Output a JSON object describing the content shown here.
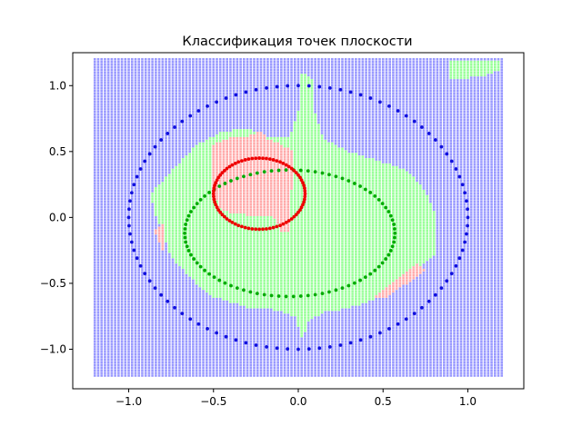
{
  "chart_data": {
    "type": "scatter",
    "title": "Классификация точек плоскости",
    "xlabel": "",
    "ylabel": "",
    "xlim": [
      -1.33,
      1.33
    ],
    "ylim": [
      -1.3,
      1.25
    ],
    "x_ticks": [
      -1.0,
      -0.5,
      0.0,
      0.5,
      1.0
    ],
    "x_tick_labels": [
      "−1.0",
      "−0.5",
      "0.0",
      "0.5",
      "1.0"
    ],
    "y_ticks": [
      -1.0,
      -0.5,
      0.0,
      0.5,
      1.0
    ],
    "y_tick_labels": [
      "−1.0",
      "−0.5",
      "0.0",
      "0.5",
      "1.0"
    ],
    "grid": false,
    "colors": {
      "class_outer": "#1010dd",
      "class_middle": "#00aa00",
      "class_inner": "#ee0000",
      "region_outer": "#9999ff",
      "region_middle": "#99ff99",
      "region_inner": "#ffaaaa"
    },
    "background_grid": {
      "x_range": [
        -1.2,
        1.2
      ],
      "y_range": [
        -1.2,
        1.2
      ],
      "step": 0.02
    },
    "regions": [
      {
        "name": "region-outer",
        "class": "outer",
        "polygon": [
          [
            -1.2,
            -1.2
          ],
          [
            1.2,
            -1.2
          ],
          [
            1.2,
            1.2
          ],
          [
            -1.2,
            1.2
          ]
        ]
      },
      {
        "name": "region-middle-blob",
        "class": "middle",
        "polygon": [
          [
            -0.87,
            0.18
          ],
          [
            -0.75,
            0.35
          ],
          [
            -0.6,
            0.55
          ],
          [
            -0.45,
            0.65
          ],
          [
            -0.3,
            0.68
          ],
          [
            -0.2,
            0.62
          ],
          [
            -0.05,
            0.6
          ],
          [
            0.0,
            0.8
          ],
          [
            0.02,
            1.1
          ],
          [
            0.08,
            1.05
          ],
          [
            0.1,
            0.8
          ],
          [
            0.15,
            0.6
          ],
          [
            0.3,
            0.5
          ],
          [
            0.5,
            0.42
          ],
          [
            0.65,
            0.35
          ],
          [
            0.75,
            0.2
          ],
          [
            0.8,
            0.05
          ],
          [
            0.82,
            -0.15
          ],
          [
            0.8,
            -0.3
          ],
          [
            0.7,
            -0.4
          ],
          [
            0.55,
            -0.55
          ],
          [
            0.4,
            -0.65
          ],
          [
            0.25,
            -0.7
          ],
          [
            0.15,
            -0.72
          ],
          [
            0.05,
            -0.8
          ],
          [
            0.03,
            -0.95
          ],
          [
            -0.02,
            -0.75
          ],
          [
            -0.15,
            -0.7
          ],
          [
            -0.3,
            -0.68
          ],
          [
            -0.5,
            -0.6
          ],
          [
            -0.6,
            -0.5
          ],
          [
            -0.75,
            -0.3
          ],
          [
            -0.8,
            -0.1
          ],
          [
            -0.85,
            0.05
          ]
        ]
      },
      {
        "name": "region-middle-corner",
        "class": "middle",
        "polygon": [
          [
            0.9,
            1.05
          ],
          [
            0.9,
            1.2
          ],
          [
            1.2,
            1.2
          ],
          [
            1.2,
            1.12
          ],
          [
            1.1,
            1.08
          ],
          [
            0.95,
            1.05
          ]
        ]
      },
      {
        "name": "region-inner-lobe",
        "class": "inner",
        "polygon": [
          [
            -0.5,
            0.55
          ],
          [
            -0.42,
            0.6
          ],
          [
            -0.3,
            0.62
          ],
          [
            -0.22,
            0.65
          ],
          [
            -0.18,
            0.6
          ],
          [
            -0.1,
            0.55
          ],
          [
            -0.02,
            0.5
          ],
          [
            -0.02,
            0.35
          ],
          [
            -0.05,
            0.15
          ],
          [
            -0.05,
            -0.1
          ],
          [
            -0.1,
            -0.1
          ],
          [
            -0.15,
            0.02
          ],
          [
            -0.3,
            0.02
          ],
          [
            -0.45,
            0.05
          ],
          [
            -0.5,
            0.2
          ],
          [
            -0.5,
            0.4
          ]
        ]
      },
      {
        "name": "region-inner-left",
        "class": "inner",
        "polygon": [
          [
            -0.85,
            -0.1
          ],
          [
            -0.8,
            -0.25
          ],
          [
            -0.78,
            -0.2
          ],
          [
            -0.8,
            -0.05
          ]
        ]
      },
      {
        "name": "region-inner-bottom-right",
        "class": "inner",
        "polygon": [
          [
            0.45,
            -0.6
          ],
          [
            0.6,
            -0.45
          ],
          [
            0.7,
            -0.35
          ],
          [
            0.75,
            -0.4
          ],
          [
            0.62,
            -0.52
          ],
          [
            0.5,
            -0.62
          ]
        ]
      }
    ],
    "series": [
      {
        "class": "outer",
        "shape": "circle",
        "cx": 0.0,
        "cy": 0.0,
        "r": 1.0,
        "n_points": 100,
        "x": [],
        "y": []
      },
      {
        "class": "middle",
        "shape": "ellipse",
        "cx": -0.05,
        "cy": -0.12,
        "rx": 0.62,
        "ry": 0.48,
        "n_points": 90,
        "x": [],
        "y": []
      },
      {
        "class": "inner",
        "shape": "circle",
        "cx": -0.23,
        "cy": 0.18,
        "r": 0.27,
        "n_points": 80,
        "x": [],
        "y": []
      }
    ]
  }
}
